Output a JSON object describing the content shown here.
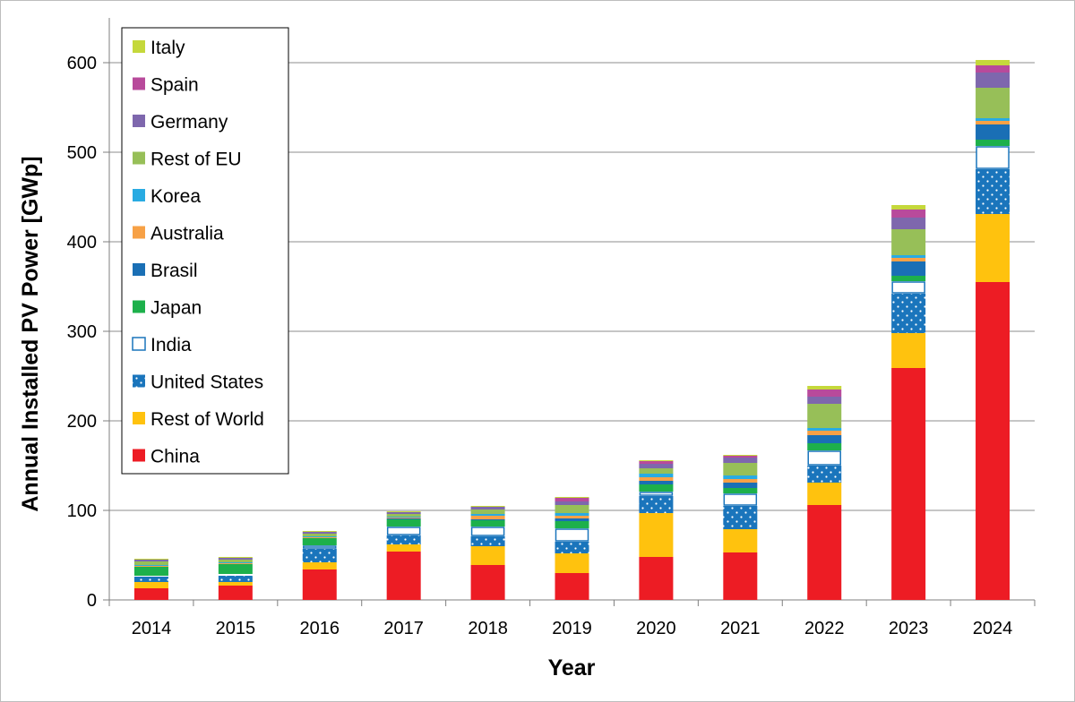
{
  "chart_data": {
    "type": "bar",
    "stacked": true,
    "xlabel": "Year",
    "ylabel": "Annual Installed PV Power [GWp]",
    "ylim": [
      0,
      650
    ],
    "yticks": [
      0,
      100,
      200,
      300,
      400,
      500,
      600
    ],
    "grid": "horizontal",
    "legend_position": "top-left",
    "categories": [
      "2014",
      "2015",
      "2016",
      "2017",
      "2018",
      "2019",
      "2020",
      "2021",
      "2022",
      "2023",
      "2024"
    ],
    "series": [
      {
        "name": "China",
        "color": "#ed1c24",
        "pattern": "solid",
        "values": [
          13,
          16,
          34,
          54,
          39,
          30,
          48,
          53,
          106,
          259,
          355
        ]
      },
      {
        "name": "Rest of World",
        "color": "#ffc20e",
        "pattern": "solid",
        "values": [
          7,
          4,
          8,
          8,
          21,
          22,
          49,
          26,
          25,
          39,
          76
        ]
      },
      {
        "name": "United States",
        "color": "#1a75bc",
        "pattern": "dotted",
        "values": [
          6,
          7,
          15,
          10,
          11,
          13,
          19,
          26,
          19,
          44,
          50
        ]
      },
      {
        "name": "India",
        "color": "#ffffff",
        "stroke": "#1a75bc",
        "pattern": "outline",
        "values": [
          1,
          2,
          4,
          10,
          11,
          15,
          5,
          14,
          17,
          14,
          26
        ]
      },
      {
        "name": "Japan",
        "color": "#1db04b",
        "pattern": "solid",
        "values": [
          10,
          11,
          8,
          8,
          7,
          8,
          8,
          6,
          8,
          6,
          7
        ]
      },
      {
        "name": "Brasil",
        "color": "#1a6fb5",
        "pattern": "solid",
        "values": [
          0,
          0,
          0,
          1,
          1,
          3,
          4,
          6,
          9,
          16,
          17
        ]
      },
      {
        "name": "Australia",
        "color": "#f7a146",
        "pattern": "solid",
        "values": [
          1,
          1,
          1,
          1,
          4,
          3,
          4,
          4,
          5,
          4,
          4
        ]
      },
      {
        "name": "Korea",
        "color": "#29abe2",
        "pattern": "solid",
        "values": [
          1,
          1,
          1,
          1,
          2,
          3,
          4,
          4,
          3,
          3,
          3
        ]
      },
      {
        "name": "Rest of EU",
        "color": "#97bf58",
        "pattern": "solid",
        "values": [
          4,
          3,
          3,
          3,
          5,
          9,
          6,
          14,
          27,
          29,
          34
        ]
      },
      {
        "name": "Germany",
        "color": "#7e67ad",
        "pattern": "solid",
        "values": [
          2,
          2,
          2,
          2,
          3,
          4,
          5,
          6,
          8,
          13,
          17
        ]
      },
      {
        "name": "Spain",
        "color": "#b84a9b",
        "pattern": "solid",
        "values": [
          0,
          0,
          0,
          0,
          0,
          4,
          3,
          2,
          8,
          9,
          8
        ]
      },
      {
        "name": "Italy",
        "color": "#c5d83b",
        "pattern": "solid",
        "values": [
          1,
          1,
          1,
          1,
          1,
          1,
          1,
          1,
          4,
          5,
          6
        ]
      }
    ]
  }
}
